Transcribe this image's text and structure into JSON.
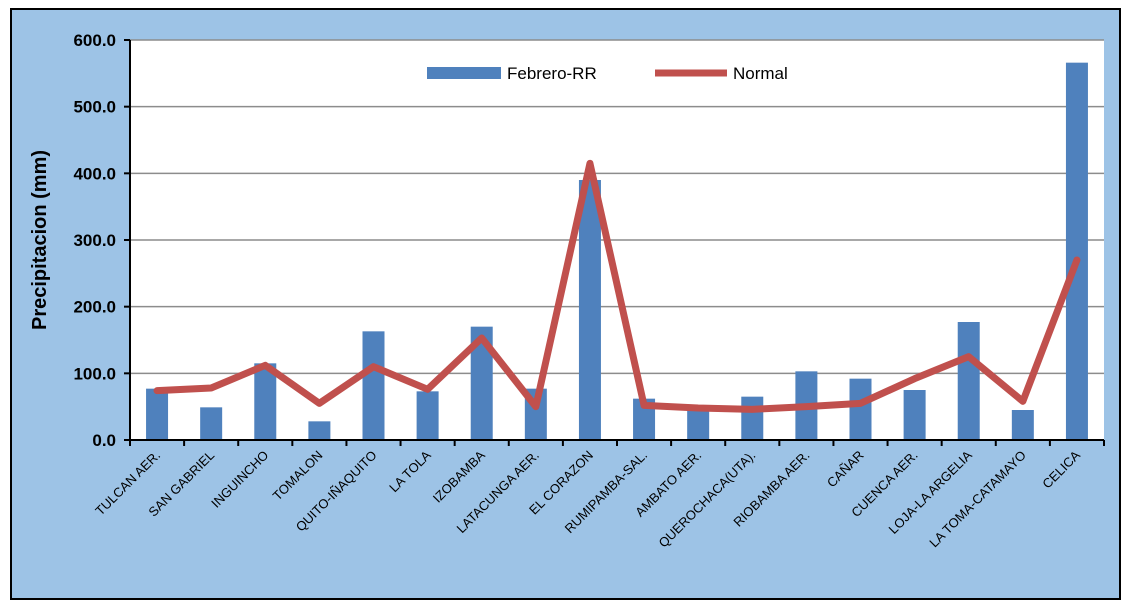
{
  "chart_data": {
    "type": "bar+line",
    "categories": [
      "TULCAN AER.",
      "SAN GABRIEL",
      "INGUINCHO",
      "TOMALON",
      "QUITO-IÑAQUITO",
      "LA TOLA",
      "IZOBAMBA",
      "LATACUNGA AER.",
      "EL CORAZON",
      "RUMIPAMBA-SAL.",
      "AMBATO AER.",
      "QUEROCHACA(UTA).",
      "RIOBAMBA AER.",
      "CAÑAR",
      "CUENCA AER.",
      "LOJA-LA ARGELIA",
      "LA TOMA-CATAMAYO",
      "CELICA"
    ],
    "series": [
      {
        "name": "Febrero-RR",
        "kind": "bar",
        "color": "#4f81bd",
        "values": [
          77,
          49,
          115,
          28,
          163,
          73,
          170,
          77,
          390,
          62,
          47,
          65,
          103,
          92,
          75,
          177,
          45,
          566
        ]
      },
      {
        "name": "Normal",
        "kind": "line",
        "color": "#c0504d",
        "values": [
          74,
          78,
          112,
          55,
          110,
          76,
          153,
          50,
          415,
          52,
          48,
          46,
          50,
          55,
          92,
          125,
          58,
          270
        ]
      }
    ],
    "ylabel": "Precipitacion (mm)",
    "xlabel": "",
    "ylim": [
      0,
      600
    ],
    "yticks": [
      "0.0",
      "100.0",
      "200.0",
      "300.0",
      "400.0",
      "500.0",
      "600.0"
    ],
    "grid": true,
    "legend_position": "top-center",
    "background_color": "#9dc3e6"
  }
}
